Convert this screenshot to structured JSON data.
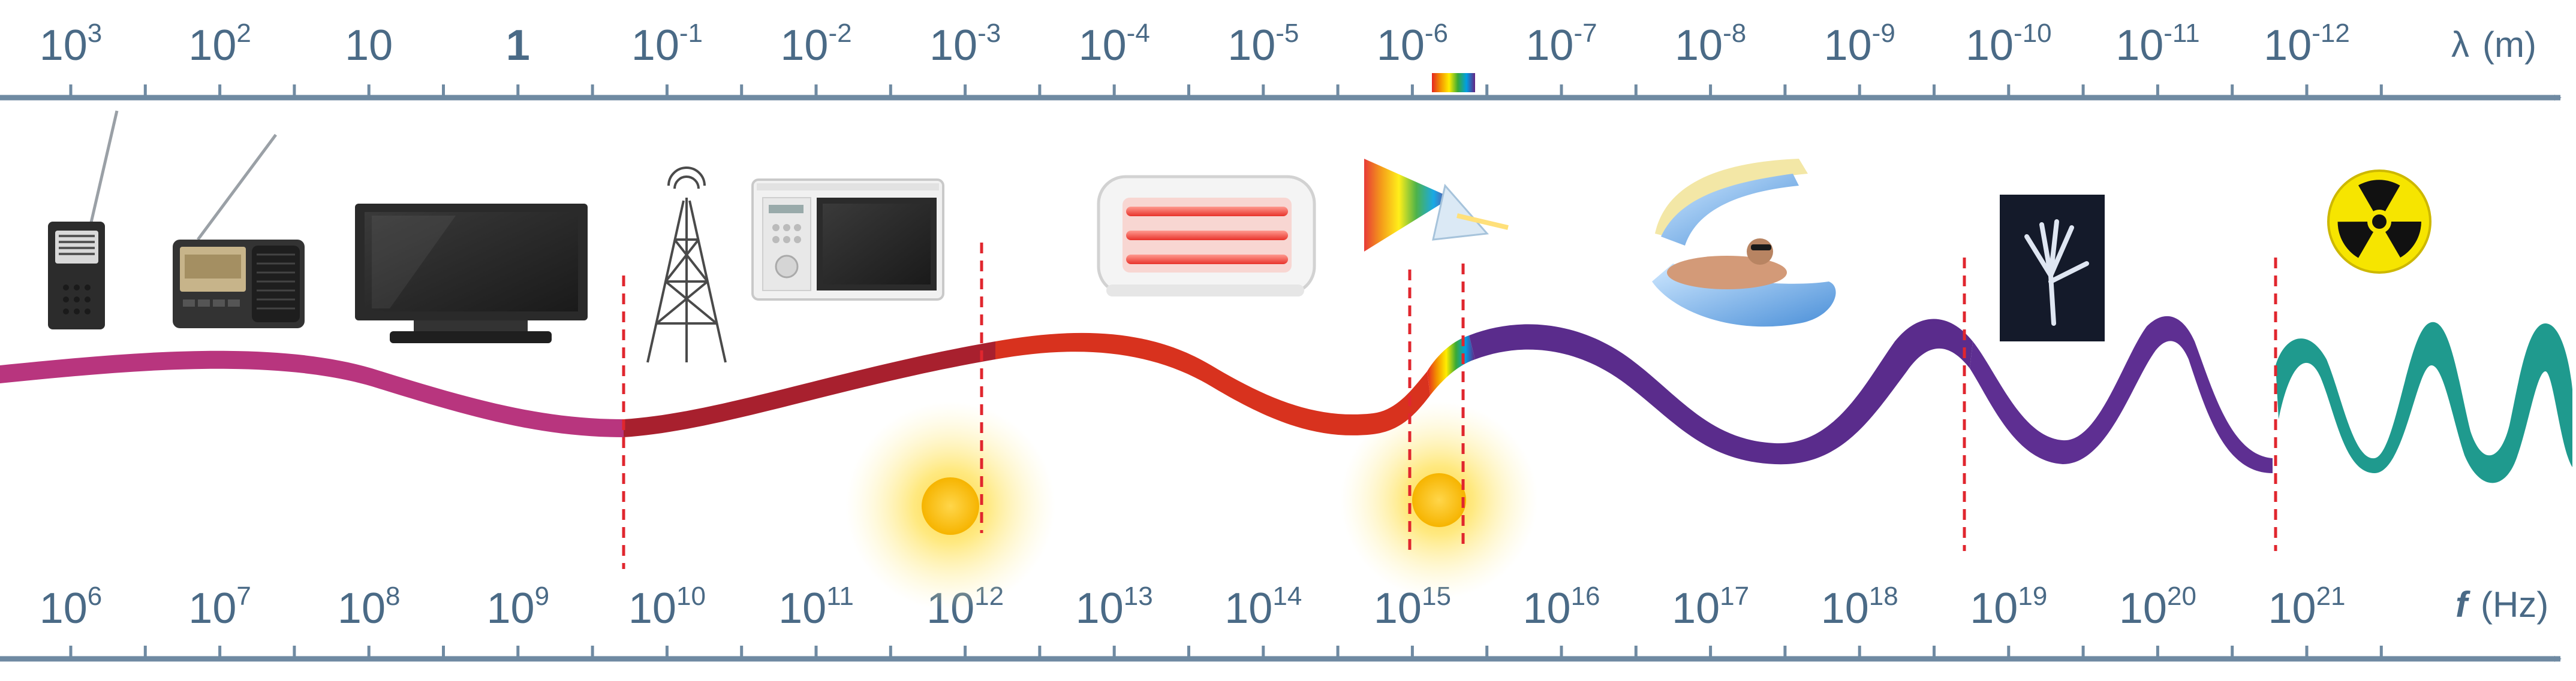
{
  "wavelength_axis": {
    "unit_symbol": "λ",
    "unit_paren": "(m)",
    "labels": [
      {
        "base": "10",
        "exp": "3"
      },
      {
        "base": "10",
        "exp": "2"
      },
      {
        "base": "10",
        "exp": ""
      },
      {
        "base": "1",
        "exp": ""
      },
      {
        "base": "10",
        "exp": "-1"
      },
      {
        "base": "10",
        "exp": "-2"
      },
      {
        "base": "10",
        "exp": "-3"
      },
      {
        "base": "10",
        "exp": "-4"
      },
      {
        "base": "10",
        "exp": "-5"
      },
      {
        "base": "10",
        "exp": "-6"
      },
      {
        "base": "10",
        "exp": "-7"
      },
      {
        "base": "10",
        "exp": "-8"
      },
      {
        "base": "10",
        "exp": "-9"
      },
      {
        "base": "10",
        "exp": "-10"
      },
      {
        "base": "10",
        "exp": "-11"
      },
      {
        "base": "10",
        "exp": "-12"
      }
    ]
  },
  "frequency_axis": {
    "unit_symbol": "f",
    "unit_paren": "(Hz)",
    "labels": [
      {
        "base": "10",
        "exp": "6"
      },
      {
        "base": "10",
        "exp": "7"
      },
      {
        "base": "10",
        "exp": "8"
      },
      {
        "base": "10",
        "exp": "9"
      },
      {
        "base": "10",
        "exp": "10"
      },
      {
        "base": "10",
        "exp": "11"
      },
      {
        "base": "10",
        "exp": "12"
      },
      {
        "base": "10",
        "exp": "13"
      },
      {
        "base": "10",
        "exp": "14"
      },
      {
        "base": "10",
        "exp": "15"
      },
      {
        "base": "10",
        "exp": "16"
      },
      {
        "base": "10",
        "exp": "17"
      },
      {
        "base": "10",
        "exp": "18"
      },
      {
        "base": "10",
        "exp": "19"
      },
      {
        "base": "10",
        "exp": "20"
      },
      {
        "base": "10",
        "exp": "21"
      }
    ]
  },
  "colors": {
    "axis": "#6f8aa2",
    "radio_wave": "#b8357e",
    "microwave_wave": "#a8202e",
    "infrared_wave": "#d8321e",
    "ultraviolet_wave": "#5a2c8c",
    "xray_wave": "#5e2f92",
    "gamma_wave": "#1f9a8e",
    "boundary": "#e0262e"
  },
  "icons": [
    "portable-radio-icon",
    "clock-radio-icon",
    "television-icon",
    "radio-tower-icon",
    "microwave-oven-icon",
    "infrared-heater-icon",
    "prism-icon",
    "tanning-bed-icon",
    "xray-hand-icon",
    "radiation-hazard-icon",
    "glow-sun-icon"
  ]
}
